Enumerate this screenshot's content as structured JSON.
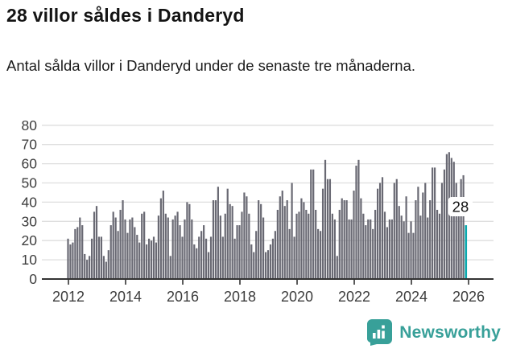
{
  "header": {
    "title": "28 villor såldes i Danderyd",
    "subtitle": "Antal sålda villor i Danderyd under de senaste tre månaderna."
  },
  "chart_data": {
    "type": "bar",
    "frequency": "monthly",
    "start": "2012-01",
    "end": "2025-12",
    "values": [
      21,
      18,
      19,
      26,
      27,
      32,
      28,
      13,
      10,
      12,
      21,
      35,
      38,
      22,
      22,
      12,
      9,
      15,
      28,
      35,
      32,
      25,
      36,
      41,
      31,
      24,
      31,
      32,
      27,
      23,
      19,
      34,
      35,
      18,
      21,
      20,
      22,
      19,
      33,
      42,
      46,
      34,
      32,
      12,
      31,
      33,
      35,
      28,
      22,
      31,
      40,
      39,
      31,
      18,
      16,
      22,
      25,
      28,
      21,
      14,
      22,
      41,
      41,
      48,
      33,
      22,
      34,
      47,
      39,
      38,
      21,
      28,
      28,
      35,
      45,
      43,
      34,
      18,
      14,
      25,
      41,
      39,
      32,
      14,
      15,
      18,
      21,
      25,
      36,
      43,
      46,
      38,
      41,
      26,
      50,
      22,
      34,
      35,
      42,
      40,
      36,
      34,
      57,
      57,
      36,
      26,
      25,
      47,
      62,
      52,
      52,
      34,
      31,
      12,
      36,
      42,
      41,
      41,
      31,
      31,
      46,
      59,
      62,
      42,
      34,
      28,
      31,
      31,
      26,
      36,
      47,
      50,
      53,
      35,
      27,
      31,
      31,
      50,
      52,
      38,
      33,
      30,
      43,
      24,
      30,
      24,
      41,
      48,
      33,
      45,
      50,
      32,
      41,
      58,
      58,
      36,
      34,
      50,
      57,
      65,
      66,
      63,
      61,
      50,
      41,
      52,
      54,
      28
    ],
    "highlight": {
      "index": 167,
      "value": 28,
      "label": "28"
    },
    "ylim": [
      0,
      80
    ],
    "yticks": [
      "0",
      "10",
      "20",
      "30",
      "40",
      "50",
      "60",
      "70",
      "80"
    ],
    "xtick_labels": [
      "2012",
      "2014",
      "2016",
      "2018",
      "2020",
      "2022",
      "2024",
      "2026"
    ],
    "xtick_every_months": 24,
    "grid": true,
    "legend": false,
    "colors": {
      "bar": "#696973",
      "highlight": "#0aa9ae",
      "grid": "#dedede",
      "axis": "#333333",
      "tick_text": "#3d3d3d",
      "label_text": "#141414",
      "label_bg": "#ffffff"
    }
  },
  "footer": {
    "brand": "Newsworthy",
    "brand_color": "#38a099",
    "logo_icon": "newsworthy-bar-chart-bubble-icon"
  }
}
